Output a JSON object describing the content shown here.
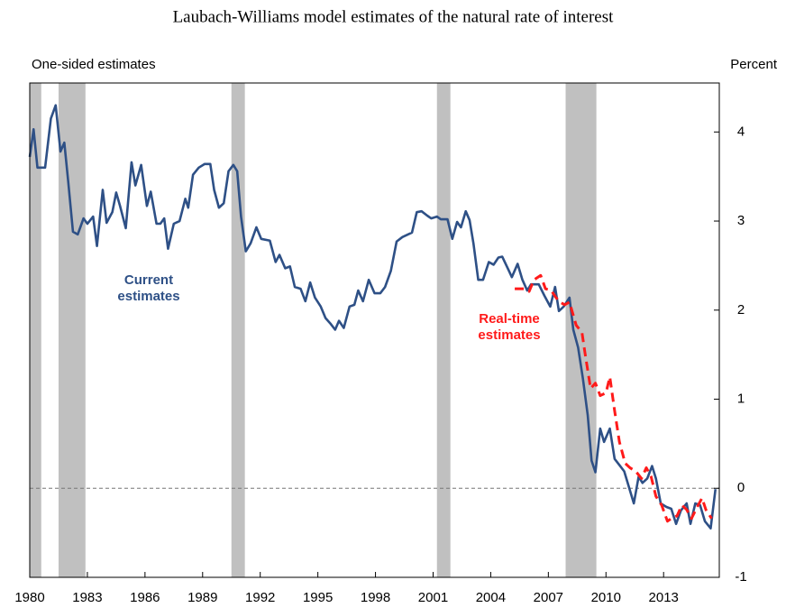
{
  "chart_data": {
    "type": "line",
    "title": "Laubach-Williams model estimates of the natural rate of interest",
    "subtitle": "One-sided estimates",
    "y_axis_label": "Percent",
    "xlim": [
      1980,
      2015.9
    ],
    "ylim": [
      -1,
      4.55
    ],
    "xticks": [
      1980,
      1983,
      1986,
      1989,
      1992,
      1995,
      1998,
      2001,
      2004,
      2007,
      2010,
      2013
    ],
    "yticks": [
      -1,
      0,
      1,
      2,
      3,
      4
    ],
    "zero_line": true,
    "recessions": [
      [
        1980.0,
        1980.6
      ],
      [
        1981.5,
        1982.9
      ],
      [
        1990.5,
        1991.2
      ],
      [
        2001.2,
        2001.9
      ],
      [
        2007.9,
        2009.5
      ]
    ],
    "recession_color": "#c0c0c0",
    "series": [
      {
        "name": "Current estimates",
        "color": "#2e5086",
        "dashed": false,
        "x": [
          1980.0,
          1980.2,
          1980.4,
          1980.8,
          1981.1,
          1981.35,
          1981.6,
          1981.8,
          1982.0,
          1982.25,
          1982.5,
          1982.8,
          1983.0,
          1983.3,
          1983.5,
          1983.8,
          1984.0,
          1984.3,
          1984.5,
          1984.7,
          1985.0,
          1985.3,
          1985.5,
          1985.8,
          1986.1,
          1986.3,
          1986.6,
          1986.8,
          1987.0,
          1987.2,
          1987.5,
          1987.8,
          1988.1,
          1988.25,
          1988.5,
          1988.8,
          1989.1,
          1989.4,
          1989.6,
          1989.85,
          1990.1,
          1990.35,
          1990.6,
          1990.8,
          1991.0,
          1991.25,
          1991.5,
          1991.8,
          1992.05,
          1992.5,
          1992.8,
          1993.0,
          1993.3,
          1993.55,
          1993.8,
          1994.1,
          1994.35,
          1994.6,
          1994.85,
          1995.15,
          1995.4,
          1995.65,
          1995.9,
          1996.1,
          1996.35,
          1996.65,
          1996.9,
          1997.1,
          1997.35,
          1997.65,
          1997.95,
          1998.25,
          1998.5,
          1998.8,
          1999.1,
          1999.4,
          1999.7,
          1999.9,
          2000.15,
          2000.4,
          2000.7,
          2000.9,
          2001.2,
          2001.4,
          2001.75,
          2002.0,
          2002.25,
          2002.45,
          2002.7,
          2002.9,
          2003.1,
          2003.35,
          2003.6,
          2003.9,
          2004.15,
          2004.4,
          2004.6,
          2004.95,
          2005.1,
          2005.4,
          2005.65,
          2005.9,
          2006.1,
          2006.5,
          2006.8,
          2007.1,
          2007.35,
          2007.55,
          2007.8,
          2008.1,
          2008.3,
          2008.55,
          2008.8,
          2009.05,
          2009.25,
          2009.45,
          2009.7,
          2009.9,
          2010.2,
          2010.45,
          2010.7,
          2010.95,
          2011.2,
          2011.45,
          2011.7,
          2011.9,
          2012.15,
          2012.4,
          2012.6,
          2012.85,
          2013.15,
          2013.4,
          2013.65,
          2013.9,
          2014.2,
          2014.4,
          2014.65,
          2014.9,
          2015.15,
          2015.45,
          2015.7
        ],
        "values": [
          3.72,
          4.03,
          3.6,
          3.6,
          4.15,
          4.3,
          3.78,
          3.88,
          3.45,
          2.88,
          2.85,
          3.03,
          2.97,
          3.05,
          2.72,
          3.35,
          2.98,
          3.1,
          3.32,
          3.17,
          2.92,
          3.66,
          3.4,
          3.63,
          3.17,
          3.33,
          2.97,
          2.97,
          3.03,
          2.69,
          2.97,
          3.0,
          3.25,
          3.15,
          3.52,
          3.6,
          3.64,
          3.64,
          3.35,
          3.15,
          3.2,
          3.56,
          3.63,
          3.56,
          3.05,
          2.66,
          2.75,
          2.93,
          2.8,
          2.78,
          2.54,
          2.62,
          2.47,
          2.49,
          2.26,
          2.24,
          2.1,
          2.31,
          2.14,
          2.04,
          1.91,
          1.85,
          1.78,
          1.88,
          1.8,
          2.04,
          2.06,
          2.22,
          2.1,
          2.34,
          2.19,
          2.19,
          2.26,
          2.44,
          2.77,
          2.82,
          2.85,
          2.87,
          3.1,
          3.11,
          3.06,
          3.03,
          3.05,
          3.02,
          3.02,
          2.8,
          2.99,
          2.93,
          3.11,
          3.01,
          2.75,
          2.34,
          2.34,
          2.54,
          2.51,
          2.59,
          2.6,
          2.44,
          2.37,
          2.52,
          2.34,
          2.22,
          2.29,
          2.29,
          2.16,
          2.04,
          2.26,
          1.99,
          2.04,
          2.14,
          1.78,
          1.58,
          1.23,
          0.82,
          0.31,
          0.18,
          0.67,
          0.52,
          0.67,
          0.33,
          0.26,
          0.19,
          0.01,
          -0.17,
          0.13,
          0.06,
          0.11,
          0.25,
          0.11,
          -0.17,
          -0.21,
          -0.23,
          -0.4,
          -0.25,
          -0.17,
          -0.4,
          -0.17,
          -0.19,
          -0.37,
          -0.45,
          -0.01
        ]
      },
      {
        "name": "Real-time estimates",
        "color": "#ff1a1a",
        "dashed": true,
        "x": [
          2005.25,
          2005.75,
          2006.0,
          2006.25,
          2006.6,
          2006.85,
          2007.15,
          2007.4,
          2007.6,
          2007.85,
          2008.1,
          2008.45,
          2008.75,
          2008.9,
          2009.2,
          2009.45,
          2009.7,
          2010.0,
          2010.2,
          2010.45,
          2010.7,
          2011.0,
          2011.25,
          2011.55,
          2011.85,
          2012.1,
          2012.35,
          2012.6,
          2012.9,
          2013.2,
          2013.4,
          2013.7,
          2013.95,
          2014.2,
          2014.45,
          2014.75,
          2015.0,
          2015.2,
          2015.5
        ],
        "values": [
          2.24,
          2.24,
          2.21,
          2.34,
          2.39,
          2.24,
          2.22,
          2.14,
          2.09,
          2.06,
          2.09,
          1.83,
          1.75,
          1.53,
          1.12,
          1.18,
          1.04,
          1.07,
          1.25,
          0.87,
          0.52,
          0.28,
          0.23,
          0.19,
          0.11,
          0.23,
          0.13,
          -0.09,
          -0.19,
          -0.37,
          -0.34,
          -0.31,
          -0.19,
          -0.24,
          -0.34,
          -0.21,
          -0.11,
          -0.24,
          -0.34
        ]
      }
    ]
  }
}
